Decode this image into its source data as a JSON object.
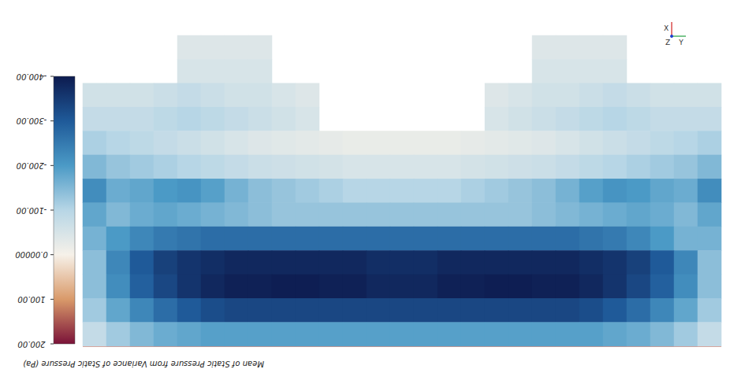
{
  "chart_data": {
    "type": "heatmap",
    "title": "Mean of Static Pressure from Variance of Static Pressure (Pa)",
    "colorbar_range": [
      -400,
      200
    ],
    "colorbar_ticks": [
      {
        "value": -400,
        "label": "-400.00"
      },
      {
        "value": -300,
        "label": "-300.00"
      },
      {
        "value": -200,
        "label": "-200.00"
      },
      {
        "value": -100,
        "label": "-100.00"
      },
      {
        "value": 0,
        "label": "0.00000"
      },
      {
        "value": 100,
        "label": "100.00"
      },
      {
        "value": 200,
        "label": "200.00"
      }
    ],
    "annotations": [
      "X",
      "Z",
      "Y"
    ],
    "cells": [
      [
        null,
        null,
        null,
        null,
        -40,
        -40,
        -40,
        -40,
        null,
        null,
        null,
        null,
        null,
        null,
        null,
        null,
        null,
        null,
        null,
        -40,
        -40,
        -40,
        -40,
        null,
        null,
        null,
        null
      ],
      [
        null,
        null,
        null,
        null,
        -50,
        -50,
        -50,
        -50,
        null,
        null,
        null,
        null,
        null,
        null,
        null,
        null,
        null,
        null,
        null,
        -50,
        -50,
        -50,
        -50,
        null,
        null,
        null,
        null
      ],
      [
        -60,
        -60,
        -60,
        -70,
        -80,
        -70,
        -60,
        -60,
        -50,
        -40,
        null,
        null,
        null,
        null,
        null,
        null,
        null,
        -40,
        -50,
        -60,
        -60,
        -70,
        -80,
        -70,
        -60,
        -60,
        -60
      ],
      [
        -80,
        -80,
        -80,
        -90,
        -100,
        -90,
        -80,
        -70,
        -60,
        -50,
        null,
        null,
        null,
        null,
        null,
        null,
        null,
        -50,
        -60,
        -70,
        -80,
        -90,
        -100,
        -90,
        -80,
        -80,
        -80
      ],
      [
        -110,
        -100,
        -90,
        -80,
        -70,
        -60,
        -50,
        -40,
        -35,
        -30,
        -25,
        -20,
        -20,
        -20,
        -20,
        -20,
        -25,
        -30,
        -35,
        -40,
        -50,
        -60,
        -70,
        -80,
        -90,
        -100,
        -110
      ],
      [
        -150,
        -130,
        -120,
        -110,
        -100,
        -90,
        -80,
        -70,
        -65,
        -60,
        -55,
        -50,
        -50,
        -50,
        -50,
        -50,
        -55,
        -60,
        -65,
        -70,
        -80,
        -90,
        -100,
        -110,
        -120,
        -130,
        -150
      ],
      [
        -220,
        -170,
        -180,
        -200,
        -210,
        -190,
        -160,
        -140,
        -130,
        -120,
        -110,
        -100,
        -100,
        -100,
        -100,
        -100,
        -110,
        -120,
        -130,
        -140,
        -160,
        -190,
        -210,
        -200,
        -180,
        -170,
        -220
      ],
      [
        -180,
        -150,
        -170,
        -180,
        -170,
        -160,
        -150,
        -140,
        -130,
        -130,
        -130,
        -130,
        -130,
        -130,
        -130,
        -130,
        -130,
        -130,
        -130,
        -140,
        -150,
        -160,
        -170,
        -180,
        -170,
        -150,
        -180
      ],
      [
        -160,
        -200,
        -230,
        -250,
        -260,
        -270,
        -270,
        -270,
        -270,
        -270,
        -270,
        -270,
        -270,
        -270,
        -270,
        -270,
        -270,
        -270,
        -270,
        -270,
        -270,
        -260,
        -250,
        -230,
        -200,
        -160,
        -160
      ],
      [
        -140,
        -230,
        -300,
        -340,
        -360,
        -370,
        -380,
        -380,
        -380,
        -380,
        -380,
        -380,
        -370,
        -370,
        -370,
        -380,
        -380,
        -380,
        -380,
        -380,
        -380,
        -370,
        -360,
        -340,
        -300,
        -230,
        -140
      ],
      [
        -140,
        -220,
        -290,
        -330,
        -360,
        -380,
        -390,
        -390,
        -395,
        -395,
        -390,
        -390,
        -380,
        -380,
        -380,
        -390,
        -390,
        -395,
        -395,
        -390,
        -390,
        -380,
        -360,
        -330,
        -290,
        -220,
        -140
      ],
      [
        -120,
        -180,
        -230,
        -270,
        -300,
        -320,
        -330,
        -330,
        -330,
        -330,
        -330,
        -330,
        -330,
        -330,
        -330,
        -330,
        -330,
        -330,
        -330,
        -330,
        -330,
        -320,
        -300,
        -270,
        -230,
        -180,
        -120
      ],
      [
        -80,
        -120,
        -150,
        -170,
        -180,
        -190,
        -190,
        -190,
        -190,
        -190,
        -190,
        -190,
        -190,
        -190,
        -190,
        -190,
        -190,
        -190,
        -190,
        -190,
        -190,
        -190,
        -180,
        -170,
        -150,
        -120,
        -80
      ]
    ]
  }
}
